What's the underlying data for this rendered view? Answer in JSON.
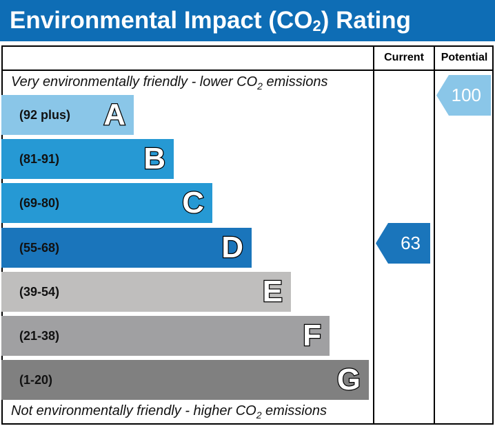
{
  "title": {
    "main": "Environmental Impact (CO",
    "sub": "2",
    "end": ") Rating"
  },
  "columns": {
    "current": "Current",
    "potential": "Potential"
  },
  "top_note": {
    "pre": "Very environmentally friendly - lower CO",
    "sub": "2",
    "post": " emissions"
  },
  "bottom_note": {
    "pre": "Not environmentally friendly - higher CO",
    "sub": "2",
    "post": " emissions"
  },
  "bands": [
    {
      "letter": "A",
      "range": "(92 plus)",
      "color": "#8ac6e8"
    },
    {
      "letter": "B",
      "range": "(81-91)",
      "color": "#2699d4"
    },
    {
      "letter": "C",
      "range": "(69-80)",
      "color": "#2699d4"
    },
    {
      "letter": "D",
      "range": "(55-68)",
      "color": "#1a75bb"
    },
    {
      "letter": "E",
      "range": "(39-54)",
      "color": "#bfbebd"
    },
    {
      "letter": "F",
      "range": "(21-38)",
      "color": "#a0a0a2"
    },
    {
      "letter": "G",
      "range": "(1-20)",
      "color": "#808080"
    }
  ],
  "current": {
    "value": "63",
    "band": "D",
    "color": "#1a75bb"
  },
  "potential": {
    "value": "100",
    "band": "A",
    "color": "#8ac6e8"
  }
}
